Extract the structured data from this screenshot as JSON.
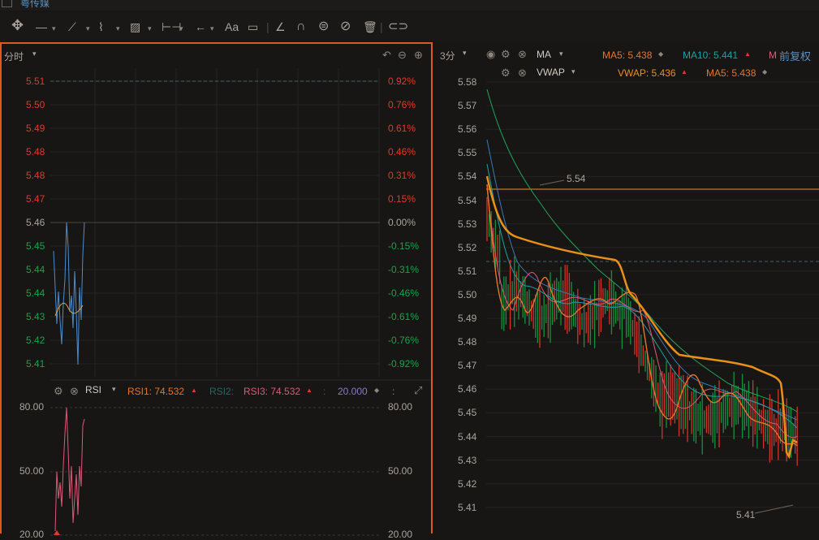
{
  "app": {
    "stock_name": "粤传媒"
  },
  "toolbar": {
    "icons": [
      "move-icon",
      "line-icon",
      "trend-tool-icon",
      "wave-tool-icon",
      "channel-tool-icon",
      "measure-icon",
      "arrow-icon",
      "text-icon",
      "comment-icon",
      "ruler-icon",
      "magnet-icon",
      "lock-icon",
      "hide-icon",
      "delete-icon",
      "link-icon"
    ],
    "text_label": "Aa"
  },
  "left_chart": {
    "period_label": "分时",
    "price_ticks": [
      "5.51",
      "5.50",
      "5.49",
      "5.48",
      "5.48",
      "5.47",
      "5.46",
      "5.45",
      "5.44",
      "5.44",
      "5.43",
      "5.42",
      "5.41"
    ],
    "pct_ticks": [
      "0.92%",
      "0.76%",
      "0.61%",
      "0.46%",
      "0.31%",
      "0.15%",
      "0.00%",
      "-0.15%",
      "-0.31%",
      "-0.46%",
      "-0.61%",
      "-0.76%",
      "-0.92%"
    ],
    "rsi": {
      "indicator_name": "RSI",
      "rsi1_label": "RSI1: 74.532",
      "rsi2_label": "RSI2:",
      "rsi3_label": "RSI3: 74.532",
      "extra_value": "20.000",
      "ticks_left": [
        "80.00",
        "50.00",
        "20.00"
      ],
      "ticks_right": [
        "80.00",
        "50.00",
        "20.00"
      ]
    }
  },
  "right_chart": {
    "period_label": "3分",
    "ma": {
      "name": "MA",
      "ma5_label": "MA5: 5.438",
      "ma10_label": "MA10: 5.441",
      "ma_more": "M"
    },
    "vwap": {
      "name": "VWAP",
      "vwap_label": "VWAP: 5.436",
      "ma5_label": "MA5: 5.438"
    },
    "adjust_label": "前复权",
    "price_ticks": [
      "5.58",
      "5.57",
      "5.56",
      "5.55",
      "5.54",
      "5.54",
      "5.53",
      "5.52",
      "5.51",
      "5.50",
      "5.49",
      "5.48",
      "5.47",
      "5.46",
      "5.45",
      "5.44",
      "5.43",
      "5.42",
      "5.41"
    ],
    "high_marker": "5.54",
    "low_marker": "5.41"
  },
  "colors": {
    "accent_border": "#e0581e",
    "up": "#e0382e",
    "down": "#17a34a",
    "ma5": "#e8732a",
    "ma10": "#1aa3a3",
    "vwap": "#e8901a"
  }
}
